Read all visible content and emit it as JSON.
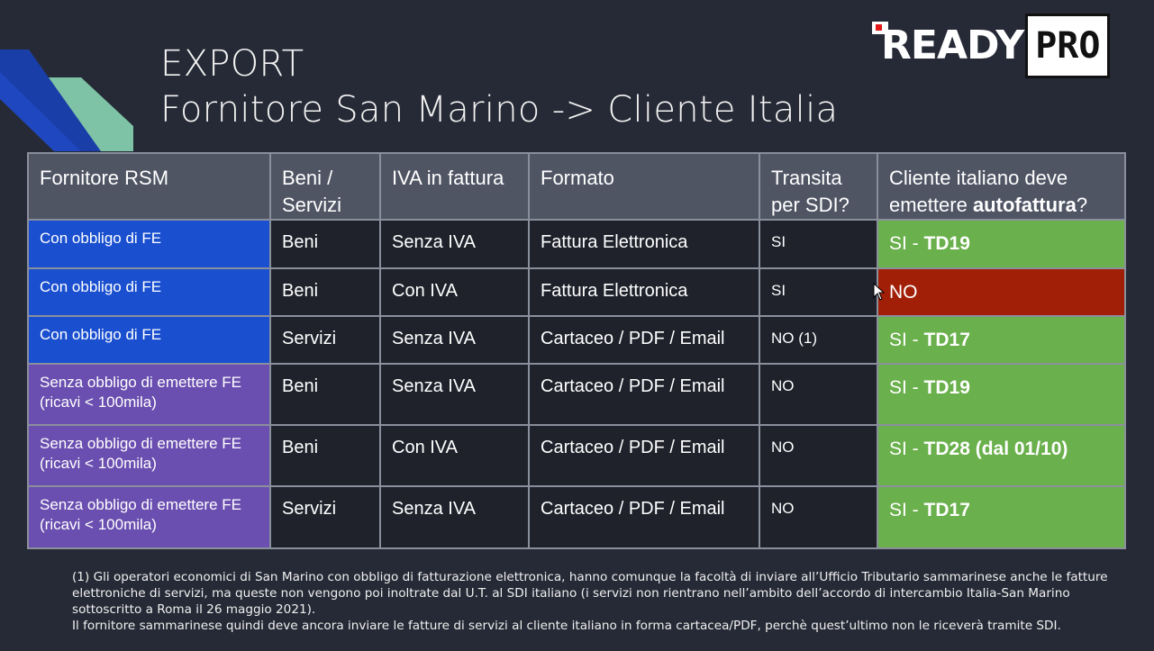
{
  "slide": {
    "title_line1": "EXPORT",
    "title_line2": "Fornitore San Marino -> Cliente Italia"
  },
  "logo": {
    "text_ready": "READY",
    "text_pro": "PRO"
  },
  "colors": {
    "background": "#262a36",
    "header": "#505564",
    "blue": "#1a4fcf",
    "purple": "#6a4fb0",
    "green": "#6ab04c",
    "red": "#a21f07"
  },
  "table": {
    "headers": {
      "col1": "Fornitore RSM",
      "col2": "Beni / Servizi",
      "col3": "IVA in fattura",
      "col4": "Formato",
      "col5": "Transita per SDI?",
      "col6_pre": "Cliente italiano deve emettere ",
      "col6_bold": "autofattura",
      "col6_post": "?"
    },
    "rows": [
      {
        "rsm_line1": "Con obbligo di FE",
        "rsm_line2": "",
        "tipo": "Beni",
        "iva": "Senza IVA",
        "formato": "Fattura Elettronica",
        "sdi": "SI",
        "auto_pre": "SI - ",
        "auto_bold": "TD19",
        "status": "green"
      },
      {
        "rsm_line1": "Con obbligo di FE",
        "rsm_line2": "",
        "tipo": "Beni",
        "iva": "Con IVA",
        "formato": "Fattura Elettronica",
        "sdi": "SI",
        "auto_pre": "NO",
        "auto_bold": "",
        "status": "red"
      },
      {
        "rsm_line1": "Con obbligo di FE",
        "rsm_line2": "",
        "tipo": "Servizi",
        "iva": "Senza IVA",
        "formato": "Cartaceo / PDF / Email",
        "sdi": "NO (1)",
        "auto_pre": "SI - ",
        "auto_bold": "TD17",
        "status": "green"
      },
      {
        "rsm_line1": "Senza obbligo di emettere FE",
        "rsm_line2": "(ricavi < 100mila)",
        "tipo": "Beni",
        "iva": "Senza IVA",
        "formato": "Cartaceo / PDF / Email",
        "sdi": "NO",
        "auto_pre": "SI - ",
        "auto_bold": "TD19",
        "status": "green"
      },
      {
        "rsm_line1": "Senza obbligo di emettere FE",
        "rsm_line2": "(ricavi < 100mila)",
        "tipo": "Beni",
        "iva": "Con IVA",
        "formato": "Cartaceo / PDF / Email",
        "sdi": "NO",
        "auto_pre": "SI - ",
        "auto_bold": "TD28 (dal 01/10)",
        "status": "green"
      },
      {
        "rsm_line1": "Senza obbligo di emettere FE",
        "rsm_line2": "(ricavi < 100mila)",
        "tipo": "Servizi",
        "iva": "Senza IVA",
        "formato": "Cartaceo / PDF / Email",
        "sdi": "NO",
        "auto_pre": "SI - ",
        "auto_bold": "TD17",
        "status": "green"
      }
    ]
  },
  "footnote": {
    "line1": "(1) Gli operatori economici di San Marino con obbligo di fatturazione elettronica, hanno comunque la facoltà di inviare all’Ufficio Tributario sammarinese anche le fatture elettroniche di servizi, ma queste non vengono poi inoltrate dal U.T. al SDI italiano (i servizi non rientrano nell’ambito dell’accordo di intercambio Italia-San Marino sottoscritto a Roma il 26 maggio 2021).",
    "line2": "Il fornitore sammarinese quindi deve ancora inviare le fatture di servizi al cliente italiano in forma cartacea/PDF, perchè quest’ultimo non le riceverà tramite SDI."
  }
}
